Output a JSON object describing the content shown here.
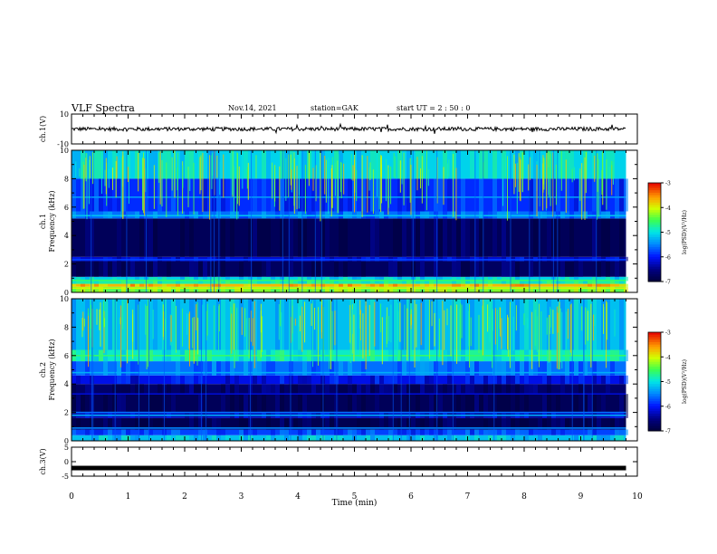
{
  "header": {
    "title": "VLF Spectra",
    "date": "Nov.14, 2021",
    "station": "station=GAK",
    "start": "start  UT =  2 : 50 : 0"
  },
  "chart_data": {
    "type": "heatmap",
    "title": "VLF Spectra",
    "x": {
      "label": "Time  (min)",
      "range": [
        0,
        10
      ],
      "ticks": [
        "0",
        "1",
        "2",
        "3",
        "4",
        "5",
        "6",
        "7",
        "8",
        "9",
        "10"
      ]
    },
    "panels": [
      {
        "id": "ch1-waveform",
        "type": "line",
        "ylabel": "ch.1(V)",
        "ylim": [
          -10,
          10
        ],
        "yticks": [
          "10",
          "-10"
        ],
        "x_end_min": 9.8,
        "approx_level": 0,
        "approx_amplitude": 2.5
      },
      {
        "id": "ch1-spectrogram",
        "type": "heatmap",
        "ylabel": "ch.1\nFrequency (kHz)",
        "ylim": [
          0,
          10
        ],
        "yticks": [
          "0",
          "2",
          "4",
          "6",
          "8",
          "10"
        ],
        "x_end_min": 9.8,
        "bands_khz": [
          {
            "from": 0,
            "to": 0.4,
            "level": -4.3
          },
          {
            "from": 0.4,
            "to": 0.6,
            "level": -3.7
          },
          {
            "from": 0.6,
            "to": 0.8,
            "level": -4.8
          },
          {
            "from": 0.8,
            "to": 1.1,
            "level": -5.1
          },
          {
            "from": 1.1,
            "to": 2.2,
            "level": -6.75
          },
          {
            "from": 2.2,
            "to": 2.5,
            "level": -6.2
          },
          {
            "from": 2.5,
            "to": 5.2,
            "level": -6.8
          },
          {
            "from": 5.2,
            "to": 5.7,
            "level": -5.6
          },
          {
            "from": 5.7,
            "to": 8.0,
            "level": -5.9
          },
          {
            "from": 8.0,
            "to": 10,
            "level": -5.1
          }
        ],
        "lines_khz": [
          {
            "f": 0.3,
            "level": -4.0
          },
          {
            "f": 0.85,
            "level": -4.6
          },
          {
            "f": 2.3,
            "level": -5.8
          },
          {
            "f": 5.4,
            "level": -5.2
          },
          {
            "f": 6.7,
            "level": -5.4
          }
        ]
      },
      {
        "id": "ch2-spectrogram",
        "type": "heatmap",
        "ylabel": "ch.2\nFrequency (kHz)",
        "ylim": [
          0,
          10
        ],
        "yticks": [
          "0",
          "2",
          "4",
          "6",
          "8",
          "10"
        ],
        "x_end_min": 9.8,
        "bands_khz": [
          {
            "from": 0,
            "to": 0.4,
            "level": -5.2
          },
          {
            "from": 0.4,
            "to": 0.8,
            "level": -5.8
          },
          {
            "from": 0.8,
            "to": 1.6,
            "level": -6.85
          },
          {
            "from": 1.6,
            "to": 2.0,
            "level": -6.3
          },
          {
            "from": 2.0,
            "to": 3.3,
            "level": -6.8
          },
          {
            "from": 3.3,
            "to": 4.0,
            "level": -6.7
          },
          {
            "from": 4.0,
            "to": 4.6,
            "level": -6.1
          },
          {
            "from": 4.6,
            "to": 5.6,
            "level": -5.6
          },
          {
            "from": 5.6,
            "to": 6.4,
            "level": -4.9
          },
          {
            "from": 6.4,
            "to": 10,
            "level": -5.2
          }
        ],
        "lines_khz": [
          {
            "f": 0.9,
            "level": -5.5
          },
          {
            "f": 1.8,
            "level": -5.3
          },
          {
            "f": 2.0,
            "level": -5.6
          },
          {
            "f": 3.3,
            "level": -6.2
          },
          {
            "f": 4.8,
            "level": -5.3
          },
          {
            "f": 6.0,
            "level": -4.6
          }
        ]
      },
      {
        "id": "ch3-waveform",
        "type": "line",
        "ylabel": "ch.3(V)",
        "ylim": [
          -5,
          5
        ],
        "yticks": [
          "5",
          "0",
          "-5"
        ],
        "x_end_min": 9.8,
        "approx_level": -2.2
      }
    ],
    "colorbar": {
      "label": "log(PSD)(V²/Hz)",
      "range": [
        -7,
        -3
      ],
      "ticks": [
        "-3",
        "-4",
        "-5",
        "-6",
        "-7"
      ]
    }
  }
}
